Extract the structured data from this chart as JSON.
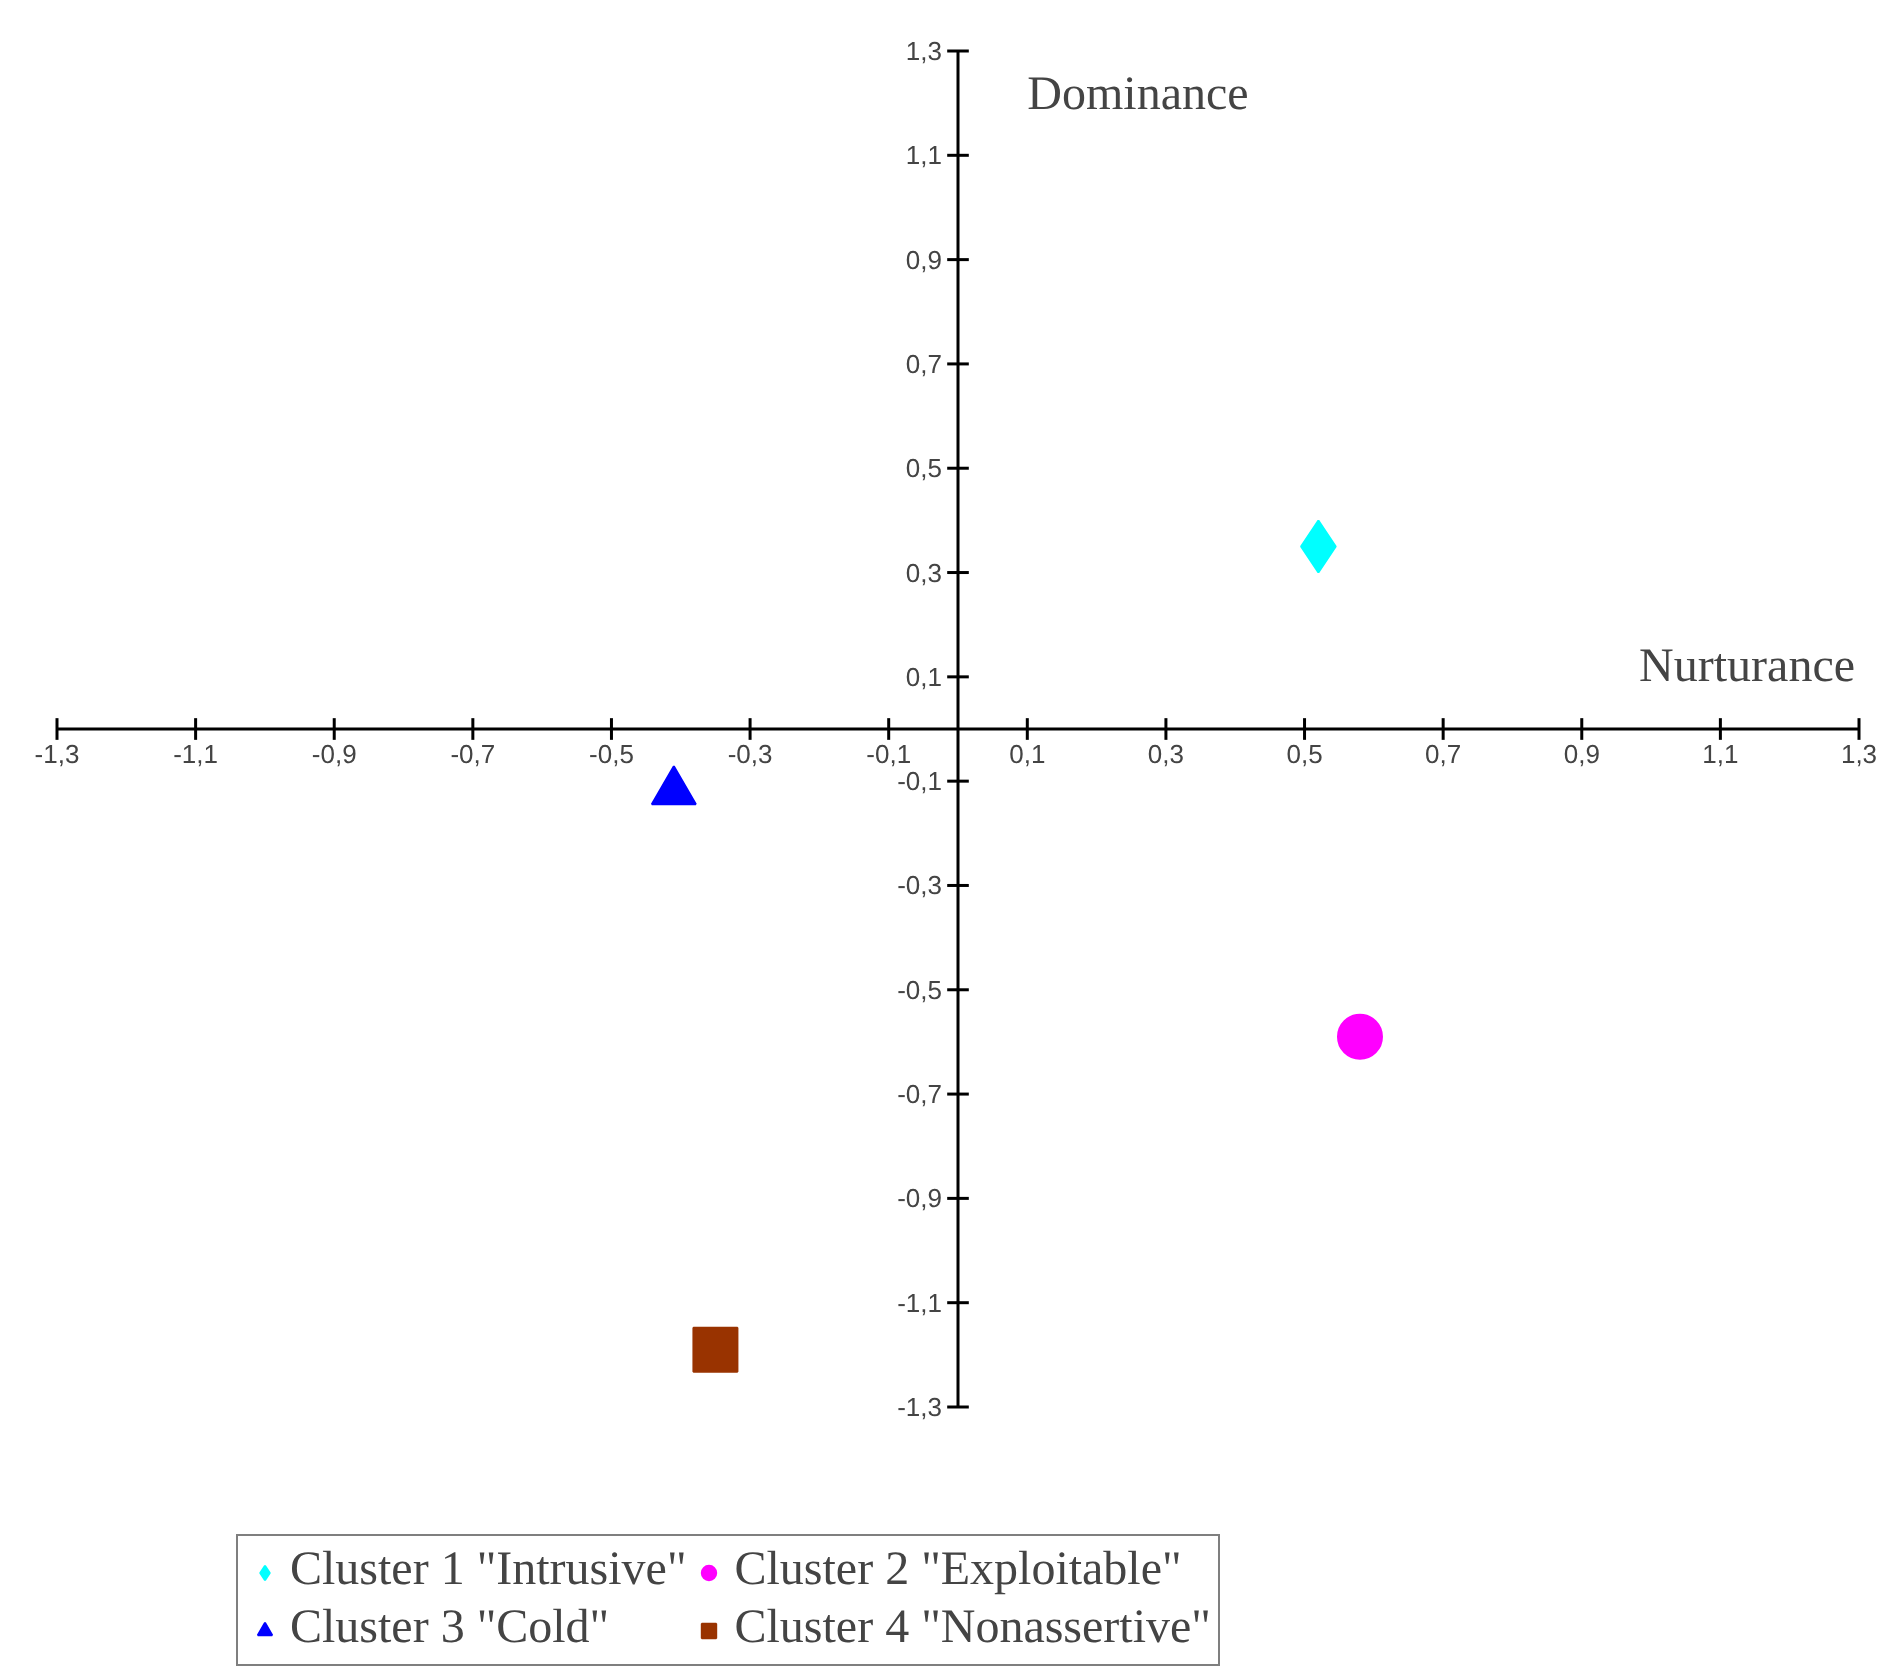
{
  "chart_data": {
    "type": "scatter",
    "xlabel": "Nurturance",
    "ylabel": "Dominance",
    "xlim": [
      -1.3,
      1.3
    ],
    "ylim": [
      -1.3,
      1.3
    ],
    "xticks": [
      {
        "value": -1.3,
        "label": "-1,3"
      },
      {
        "value": -1.1,
        "label": "-1,1"
      },
      {
        "value": -0.9,
        "label": "-0,9"
      },
      {
        "value": -0.7,
        "label": "-0,7"
      },
      {
        "value": -0.5,
        "label": "-0,5"
      },
      {
        "value": -0.3,
        "label": "-0,3"
      },
      {
        "value": -0.1,
        "label": "-0,1"
      },
      {
        "value": 0.1,
        "label": "0,1"
      },
      {
        "value": 0.3,
        "label": "0,3"
      },
      {
        "value": 0.5,
        "label": "0,5"
      },
      {
        "value": 0.7,
        "label": "0,7"
      },
      {
        "value": 0.9,
        "label": "0,9"
      },
      {
        "value": 1.1,
        "label": "1,1"
      },
      {
        "value": 1.3,
        "label": "1,3"
      }
    ],
    "yticks": [
      {
        "value": -1.3,
        "label": "-1,3"
      },
      {
        "value": -1.1,
        "label": "-1,1"
      },
      {
        "value": -0.9,
        "label": "-0,9"
      },
      {
        "value": -0.7,
        "label": "-0,7"
      },
      {
        "value": -0.5,
        "label": "-0,5"
      },
      {
        "value": -0.3,
        "label": "-0,3"
      },
      {
        "value": -0.1,
        "label": "-0,1"
      },
      {
        "value": 0.1,
        "label": "0,1"
      },
      {
        "value": 0.3,
        "label": "0,3"
      },
      {
        "value": 0.5,
        "label": "0,5"
      },
      {
        "value": 0.7,
        "label": "0,7"
      },
      {
        "value": 0.9,
        "label": "0,9"
      },
      {
        "value": 1.1,
        "label": "1,1"
      },
      {
        "value": 1.3,
        "label": "1,3"
      }
    ],
    "legend": "bottom",
    "series": [
      {
        "name": "Cluster 1 \"Intrusive\"",
        "color": "#00ffff",
        "marker": "diamond",
        "x": [
          0.52
        ],
        "values": [
          0.35
        ]
      },
      {
        "name": "Cluster 2 \"Exploitable\"",
        "color": "#ff00ff",
        "marker": "circle",
        "x": [
          0.58
        ],
        "values": [
          -0.59
        ]
      },
      {
        "name": "Cluster 3 \"Cold\"",
        "color": "#0000ff",
        "marker": "triangle",
        "x": [
          -0.41
        ],
        "values": [
          -0.12
        ]
      },
      {
        "name": "Cluster 4 \"Nonassertive\"",
        "color": "#993300",
        "marker": "square",
        "x": [
          -0.35
        ],
        "values": [
          -1.19
        ]
      }
    ]
  }
}
